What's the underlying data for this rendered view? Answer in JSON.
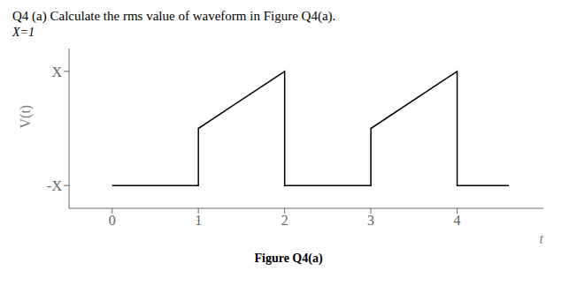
{
  "chart_data": {
    "type": "line",
    "title": "Q4 (a) Calculate the rms value of waveform in Figure Q4(a).",
    "subtitle": "X=1",
    "x_label": "t",
    "y_label": "V(t)",
    "annotations": [
      "Figure Q4(a)"
    ],
    "x": [
      0,
      1,
      1,
      2,
      2,
      3,
      3,
      4,
      4,
      4.6
    ],
    "values": [
      -1,
      -1,
      0,
      1,
      -1,
      -1,
      0,
      1,
      -1,
      -1
    ],
    "color": "#000000",
    "xlim": [
      -0.5,
      5.0
    ],
    "ylim": [
      -1.4,
      1.4
    ],
    "xticks": [
      0,
      1,
      2,
      3,
      4
    ],
    "yticks": [
      {
        "value": 1,
        "label": "X"
      },
      {
        "value": -1,
        "label": "-X"
      }
    ],
    "grid": false
  }
}
